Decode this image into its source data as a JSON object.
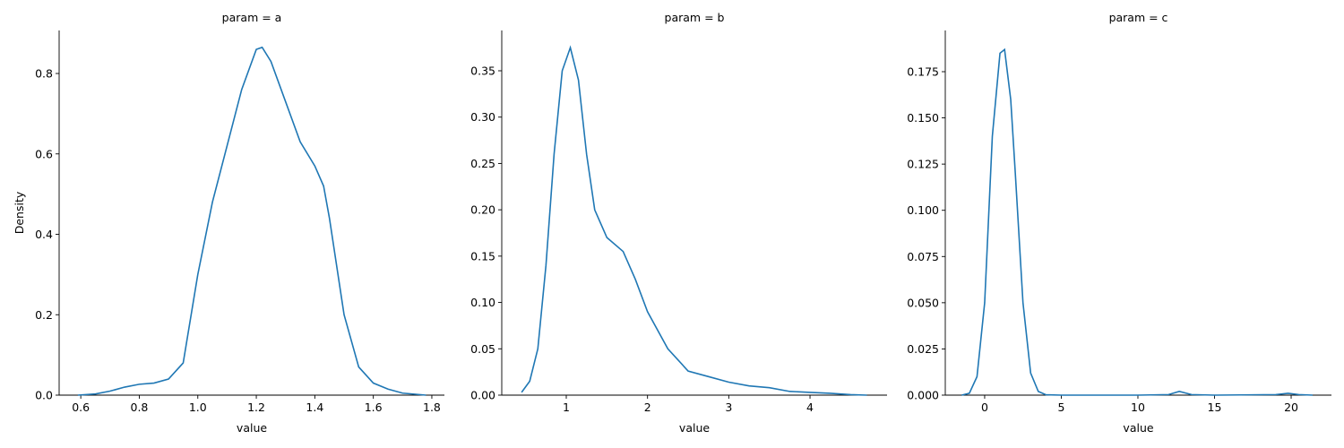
{
  "chart_data": [
    {
      "type": "line",
      "title": "param = a",
      "x_label": "value",
      "y_label": "Density",
      "color": "#1f77b4",
      "x": [
        0.59,
        0.65,
        0.7,
        0.75,
        0.8,
        0.85,
        0.9,
        0.95,
        1.0,
        1.05,
        1.1,
        1.15,
        1.2,
        1.22,
        1.25,
        1.3,
        1.35,
        1.4,
        1.43,
        1.45,
        1.5,
        1.55,
        1.6,
        1.65,
        1.7,
        1.78
      ],
      "values": [
        0.0,
        0.003,
        0.01,
        0.02,
        0.027,
        0.03,
        0.04,
        0.08,
        0.3,
        0.48,
        0.62,
        0.76,
        0.86,
        0.865,
        0.83,
        0.73,
        0.63,
        0.57,
        0.52,
        0.44,
        0.2,
        0.07,
        0.03,
        0.015,
        0.005,
        0.0
      ],
      "xlim": [
        0.526,
        1.843
      ],
      "ylim": [
        0,
        0.907
      ],
      "xticks": [
        0.6,
        0.8,
        {
          "value": 1,
          "label": "1.0"
        },
        1.2,
        1.4,
        1.6,
        1.8
      ],
      "yticks": [
        {
          "value": 0,
          "label": "0.0"
        },
        0.2,
        0.4,
        0.6,
        0.8
      ]
    },
    {
      "type": "line",
      "title": "param = b",
      "x_label": "value",
      "color": "#1f77b4",
      "x": [
        0.45,
        0.55,
        0.65,
        0.75,
        0.85,
        0.95,
        1.05,
        1.15,
        1.25,
        1.35,
        1.5,
        1.7,
        1.85,
        2.0,
        2.25,
        2.5,
        2.75,
        3.0,
        3.25,
        3.5,
        3.75,
        4.0,
        4.25,
        4.5,
        4.7
      ],
      "values": [
        0.003,
        0.015,
        0.05,
        0.14,
        0.26,
        0.35,
        0.375,
        0.34,
        0.26,
        0.2,
        0.17,
        0.155,
        0.125,
        0.09,
        0.05,
        0.026,
        0.02,
        0.014,
        0.01,
        0.008,
        0.004,
        0.003,
        0.002,
        0.0005,
        0.0
      ],
      "xlim": [
        0.206,
        4.948
      ],
      "ylim": [
        0,
        0.3935
      ],
      "xticks": [
        1,
        2,
        3,
        4
      ],
      "yticks": [
        {
          "value": 0,
          "label": "0.00"
        },
        0.05,
        {
          "value": 0.1,
          "label": "0.10"
        },
        0.15,
        {
          "value": 0.2,
          "label": "0.20"
        },
        0.25,
        {
          "value": 0.3,
          "label": "0.30"
        },
        0.35
      ]
    },
    {
      "type": "line",
      "title": "param = c",
      "x_label": "value",
      "color": "#1f77b4",
      "x": [
        -1.5,
        -1,
        -0.5,
        0,
        0.5,
        1,
        1.3,
        1.7,
        2,
        2.5,
        3,
        3.5,
        4,
        5,
        10,
        12,
        12.7,
        13.5,
        15,
        19,
        19.8,
        20.5,
        21.4
      ],
      "values": [
        0,
        0.001,
        0.01,
        0.05,
        0.14,
        0.185,
        0.187,
        0.16,
        0.12,
        0.05,
        0.012,
        0.002,
        0.0002,
        0,
        0,
        0.0003,
        0.002,
        0.0003,
        0,
        0.0003,
        0.001,
        0.0003,
        0
      ],
      "xlim": [
        -2.57,
        22.63
      ],
      "ylim": [
        0,
        0.1973
      ],
      "xticks": [
        0,
        5,
        10,
        15,
        20
      ],
      "yticks": [
        {
          "value": 0,
          "label": "0.000"
        },
        0.025,
        {
          "value": 0.05,
          "label": "0.050"
        },
        {
          "value": 0.075,
          "label": "0.075"
        },
        {
          "value": 0.1,
          "label": "0.100"
        },
        0.125,
        {
          "value": 0.15,
          "label": "0.150"
        },
        0.175
      ]
    }
  ]
}
